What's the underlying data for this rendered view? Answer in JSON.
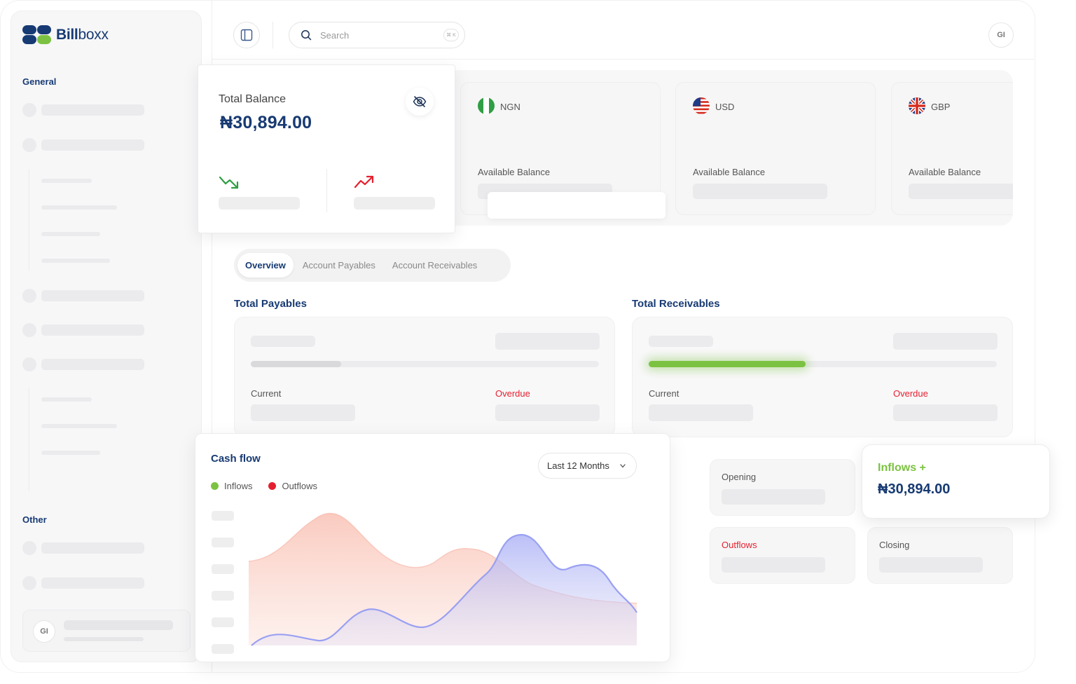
{
  "brand": {
    "name_bold": "Bill",
    "name_light": "boxx"
  },
  "sidebar": {
    "general_label": "General",
    "other_label": "Other",
    "user_initials": "GI"
  },
  "topbar": {
    "search_placeholder": "Search",
    "shortcut_hint": "⌘ K",
    "user_initials": "GI"
  },
  "balance": {
    "title": "Total Balance",
    "value": "₦30,894.00"
  },
  "currencies": [
    {
      "code": "NGN",
      "label": "Available Balance"
    },
    {
      "code": "USD",
      "label": "Available Balance"
    },
    {
      "code": "GBP",
      "label": "Available Balance"
    }
  ],
  "tabs": [
    "Overview",
    "Account Payables",
    "Account Receivables"
  ],
  "payables": {
    "title": "Total Payables",
    "current_label": "Current",
    "overdue_label": "Overdue",
    "progress": 0.26
  },
  "receivables": {
    "title": "Total Receivables",
    "current_label": "Current",
    "overdue_label": "Overdue",
    "progress": 0.45
  },
  "cashflow": {
    "title": "Cash flow",
    "range": "Last 12 Months",
    "legend": [
      {
        "name": "Inflows",
        "color": "#7cc242"
      },
      {
        "name": "Outflows",
        "color": "#e5202e"
      }
    ]
  },
  "summary": {
    "opening": "Opening",
    "outflows": "Outflows",
    "closing": "Closing",
    "inflows_title": "Inflows +",
    "inflows_value": "₦30,894.00"
  },
  "colors": {
    "brand_navy": "#173a73",
    "brand_green": "#7cc242",
    "alert_red": "#e5202e",
    "chart_pink": "#f8b8a8",
    "chart_purple": "#aab0f5"
  }
}
